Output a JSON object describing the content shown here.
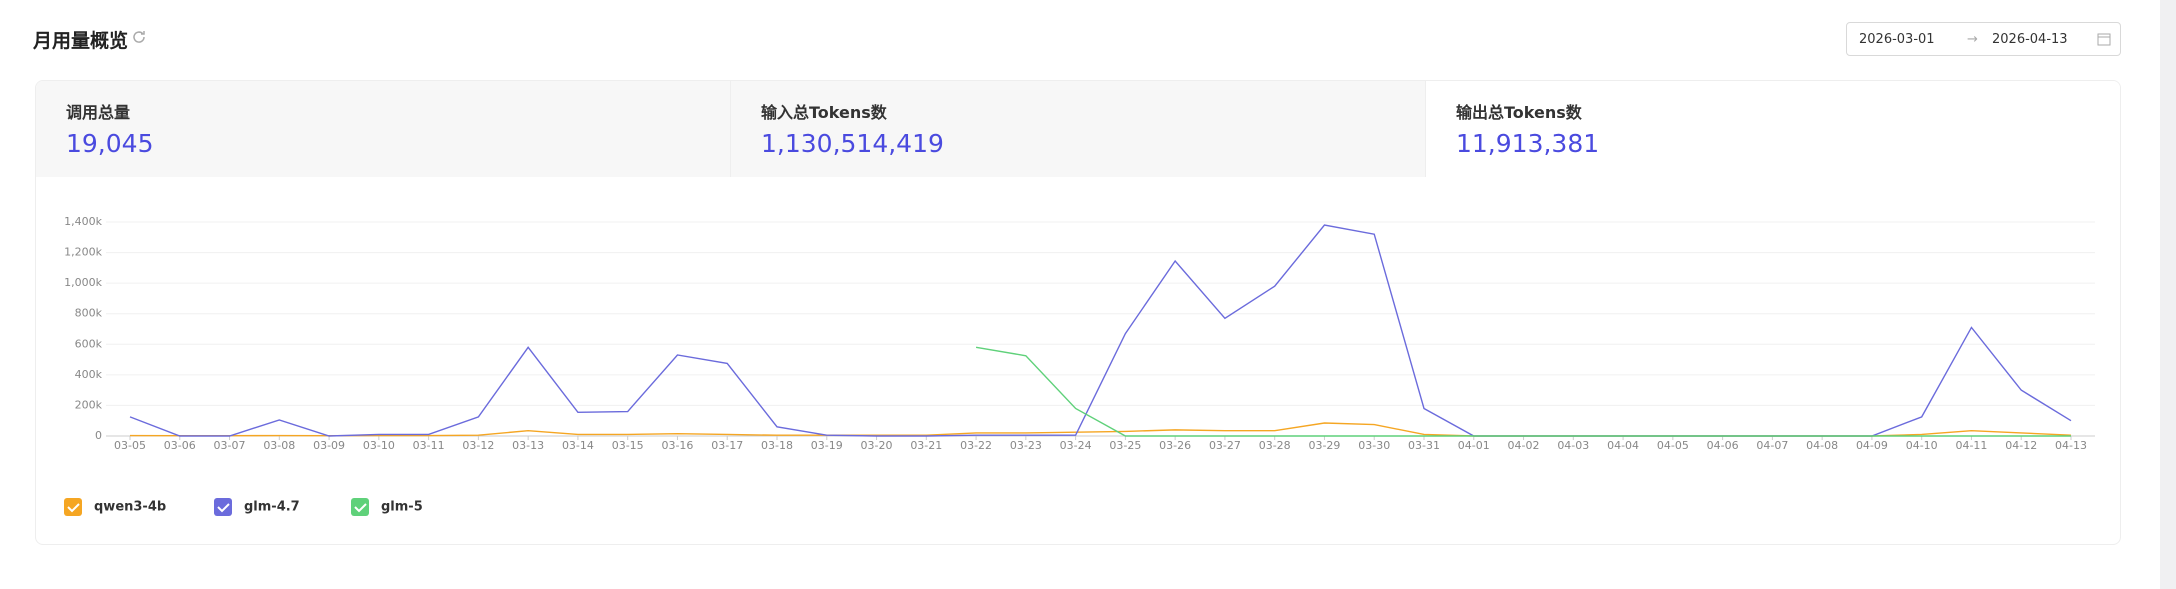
{
  "header": {
    "title": "月用量概览"
  },
  "date_range": {
    "start": "2026-03-01",
    "end": "2026-04-13"
  },
  "stats": [
    {
      "label": "调用总量",
      "value": "19,045"
    },
    {
      "label": "输入总Tokens数",
      "value": "1,130,514,419"
    },
    {
      "label": "输出总Tokens数",
      "value": "11,913,381"
    }
  ],
  "chart_data": {
    "type": "line",
    "categories": [
      "03-05",
      "03-06",
      "03-07",
      "03-08",
      "03-09",
      "03-10",
      "03-11",
      "03-12",
      "03-13",
      "03-14",
      "03-15",
      "03-16",
      "03-17",
      "03-18",
      "03-19",
      "03-20",
      "03-21",
      "03-22",
      "03-23",
      "03-24",
      "03-25",
      "03-26",
      "03-27",
      "03-28",
      "03-29",
      "03-30",
      "03-31",
      "04-01",
      "04-02",
      "04-03",
      "04-04",
      "04-05",
      "04-06",
      "04-07",
      "04-08",
      "04-09",
      "04-10",
      "04-11",
      "04-12",
      "04-13"
    ],
    "series": [
      {
        "name": "qwen3-4b",
        "color": "#f5a623",
        "values": [
          3000,
          2000,
          2000,
          3000,
          2000,
          3000,
          3000,
          5000,
          35000,
          10000,
          10000,
          15000,
          10000,
          5000,
          5000,
          5000,
          5000,
          20000,
          20000,
          25000,
          30000,
          40000,
          35000,
          35000,
          85000,
          75000,
          10000,
          0,
          0,
          0,
          0,
          0,
          0,
          0,
          0,
          0,
          10000,
          35000,
          20000,
          5000
        ]
      },
      {
        "name": "glm-4.7",
        "color": "#6b6bdc",
        "values": [
          125000,
          0,
          0,
          105000,
          0,
          10000,
          10000,
          125000,
          580000,
          155000,
          160000,
          530000,
          475000,
          60000,
          5000,
          0,
          0,
          5000,
          5000,
          5000,
          670000,
          1145000,
          770000,
          980000,
          1380000,
          1320000,
          180000,
          0,
          0,
          0,
          0,
          0,
          0,
          0,
          0,
          0,
          125000,
          710000,
          300000,
          100000
        ]
      },
      {
        "name": "glm-5",
        "color": "#5fd17a",
        "values": [
          null,
          null,
          null,
          null,
          null,
          null,
          null,
          null,
          null,
          null,
          null,
          null,
          null,
          null,
          null,
          null,
          null,
          580000,
          525000,
          180000,
          0,
          0,
          0,
          0,
          0,
          0,
          0,
          0,
          0,
          0,
          0,
          0,
          0,
          0,
          0,
          0,
          0,
          0,
          0,
          0
        ]
      }
    ],
    "ylim": [
      0,
      1400000
    ],
    "yticks": [
      0,
      {
        "value": 200000,
        "label": "200k"
      },
      {
        "value": 400000,
        "label": "400k"
      },
      {
        "value": 600000,
        "label": "600k"
      },
      {
        "value": 800000,
        "label": "800k"
      },
      {
        "value": 1000000,
        "label": "1,000k"
      },
      {
        "value": 1200000,
        "label": "1,200k"
      },
      {
        "value": 1400000,
        "label": "1,400k"
      }
    ],
    "grid": true
  }
}
